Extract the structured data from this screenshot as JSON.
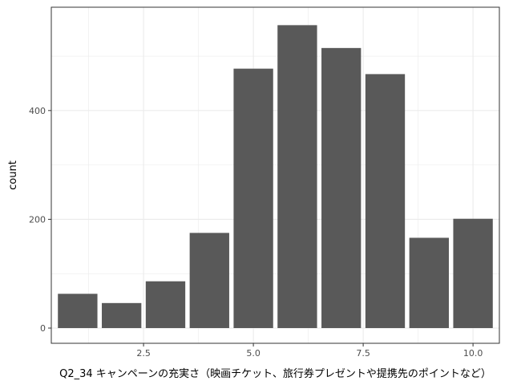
{
  "chart_data": {
    "type": "bar",
    "x": [
      1,
      2,
      3,
      4,
      5,
      6,
      7,
      8,
      9,
      10
    ],
    "values": [
      63,
      46,
      86,
      175,
      477,
      557,
      515,
      467,
      166,
      201
    ],
    "xlabel": "Q2_34 キャンペーンの充実さ（映画チケット、旅行券プレゼントや提携先のポイントなど）",
    "ylabel": "count",
    "xlim": [
      0.4,
      10.6
    ],
    "ylim": [
      -28,
      590
    ],
    "x_ticks": [
      2.5,
      5.0,
      7.5,
      10.0
    ],
    "x_tick_labels": [
      "2.5",
      "5.0",
      "7.5",
      "10.0"
    ],
    "y_ticks": [
      0,
      200,
      400
    ],
    "y_tick_labels": [
      "0",
      "200",
      "400"
    ],
    "grid": true,
    "bar_color": "#595959",
    "panel_border_color": "#333333",
    "grid_color": "#ebebeb"
  }
}
